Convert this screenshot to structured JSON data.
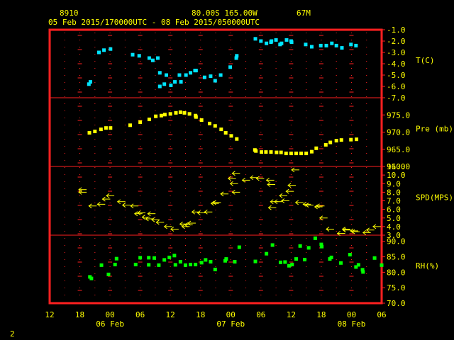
{
  "header": {
    "station": "8910",
    "location": "80.00S  165.00W",
    "elevation": "67M",
    "range": "05 Feb 2015/170000UTC - 08 Feb 2015/050000UTC"
  },
  "footer": {
    "page": "2"
  },
  "colors": {
    "frame": "#ff2020",
    "grid": "#ff2020",
    "text": "#ffff00",
    "temp": "#00e5ff",
    "pres": "#ffff00",
    "wind": "#ffff00",
    "rh": "#00ff00"
  },
  "chart_data": {
    "type": "scatter",
    "x_axis": {
      "unit": "hours since 05 Feb 12UTC",
      "range": [
        0,
        66
      ],
      "tick_labels": [
        "12",
        "18",
        "00",
        "06",
        "12",
        "18",
        "00",
        "06",
        "12",
        "18",
        "00",
        "06"
      ],
      "date_labels": [
        {
          "x": 12,
          "label": "06 Feb"
        },
        {
          "x": 36,
          "label": "07 Feb"
        },
        {
          "x": 60,
          "label": "08 Feb"
        }
      ]
    },
    "panels": [
      {
        "id": "temp",
        "label": "T(C)",
        "ylim": [
          -7,
          -1
        ],
        "ticks": [
          "-1.0",
          "-2.0",
          "-3.0",
          "-4.0",
          "-5.0",
          "-6.0",
          "-7.0"
        ],
        "points": [
          [
            7.8,
            -5.8
          ],
          [
            8.1,
            -5.6
          ],
          [
            9.8,
            -3.0
          ],
          [
            10.8,
            -2.8
          ],
          [
            12.1,
            -2.7
          ],
          [
            16.5,
            -3.2
          ],
          [
            17.8,
            -3.3
          ],
          [
            19.8,
            -3.5
          ],
          [
            20.5,
            -3.7
          ],
          [
            21.5,
            -3.5
          ],
          [
            21.9,
            -4.8
          ],
          [
            21.9,
            -6.0
          ],
          [
            22.8,
            -5.8
          ],
          [
            23.2,
            -5.0
          ],
          [
            24.1,
            -5.9
          ],
          [
            24.9,
            -5.6
          ],
          [
            25.8,
            -5.0
          ],
          [
            26.1,
            -5.6
          ],
          [
            27.1,
            -5.0
          ],
          [
            28.0,
            -4.8
          ],
          [
            28.9,
            -4.6
          ],
          [
            29.1,
            -4.6
          ],
          [
            30.8,
            -5.2
          ],
          [
            32.0,
            -5.1
          ],
          [
            32.9,
            -5.5
          ],
          [
            34.0,
            -5.0
          ],
          [
            35.9,
            -4.3
          ],
          [
            37.1,
            -3.5
          ],
          [
            37.2,
            -3.3
          ],
          [
            40.9,
            -1.8
          ],
          [
            42.0,
            -2.0
          ],
          [
            43.1,
            -2.2
          ],
          [
            44.0,
            -2.1
          ],
          [
            44.1,
            -2.0
          ],
          [
            45.0,
            -1.9
          ],
          [
            45.8,
            -2.3
          ],
          [
            46.1,
            -2.2
          ],
          [
            47.1,
            -1.9
          ],
          [
            48.0,
            -2.0
          ],
          [
            48.1,
            -2.1
          ],
          [
            50.9,
            -2.3
          ],
          [
            52.1,
            -2.5
          ],
          [
            53.9,
            -2.4
          ],
          [
            55.0,
            -2.4
          ],
          [
            56.1,
            -2.2
          ],
          [
            57.0,
            -2.4
          ],
          [
            58.1,
            -2.6
          ],
          [
            59.9,
            -2.3
          ],
          [
            60.9,
            -2.4
          ]
        ]
      },
      {
        "id": "pres",
        "label": "Pre (mb)",
        "ylim": [
          960,
          980
        ],
        "ticks": [
          "975.0",
          "970.0",
          "965.0",
          "960.0"
        ],
        "points": [
          [
            7.9,
            969.8
          ],
          [
            9.0,
            970.2
          ],
          [
            10.2,
            970.8
          ],
          [
            11.2,
            971.2
          ],
          [
            12.1,
            971.2
          ],
          [
            16.0,
            972.0
          ],
          [
            18.0,
            972.9
          ],
          [
            19.8,
            973.7
          ],
          [
            21.1,
            974.6
          ],
          [
            22.2,
            974.8
          ],
          [
            22.9,
            975.1
          ],
          [
            24.0,
            975.3
          ],
          [
            25.1,
            975.6
          ],
          [
            26.0,
            975.8
          ],
          [
            26.8,
            975.6
          ],
          [
            27.8,
            975.3
          ],
          [
            29.0,
            974.8
          ],
          [
            29.1,
            974.4
          ],
          [
            30.2,
            973.5
          ],
          [
            31.8,
            972.5
          ],
          [
            32.9,
            971.8
          ],
          [
            34.1,
            970.8
          ],
          [
            35.0,
            969.8
          ],
          [
            36.1,
            968.9
          ],
          [
            37.2,
            968.0
          ],
          [
            40.8,
            964.8
          ],
          [
            41.0,
            964.5
          ],
          [
            42.1,
            964.2
          ],
          [
            43.0,
            964.2
          ],
          [
            44.0,
            964.2
          ],
          [
            45.1,
            964.1
          ],
          [
            46.0,
            964.1
          ],
          [
            47.0,
            963.8
          ],
          [
            48.0,
            963.8
          ],
          [
            49.0,
            963.8
          ],
          [
            50.0,
            963.8
          ],
          [
            51.0,
            963.8
          ],
          [
            52.1,
            964.3
          ],
          [
            53.0,
            965.3
          ],
          [
            54.9,
            966.3
          ],
          [
            55.8,
            967.0
          ],
          [
            57.0,
            967.5
          ],
          [
            58.0,
            967.7
          ],
          [
            59.9,
            967.8
          ],
          [
            61.0,
            967.9
          ]
        ]
      },
      {
        "id": "wind",
        "label": "SPD(MPS)",
        "ylim": [
          3,
          11
        ],
        "ticks": [
          "11.0",
          "10.0",
          "9.0",
          "8.0",
          "7.0",
          "6.0",
          "5.0",
          "4.0",
          "3.0"
        ],
        "points": [
          [
            6.5,
            8.3
          ],
          [
            6.5,
            8.0
          ],
          [
            8.5,
            6.4
          ],
          [
            10.2,
            6.6
          ],
          [
            11.2,
            7.2
          ],
          [
            12.0,
            7.6
          ],
          [
            14.2,
            6.9
          ],
          [
            15.2,
            6.5
          ],
          [
            16.8,
            6.4
          ],
          [
            17.6,
            5.5
          ],
          [
            18.2,
            5.6
          ],
          [
            19.1,
            5.1
          ],
          [
            19.8,
            4.9
          ],
          [
            20.2,
            5.5
          ],
          [
            21.0,
            4.8
          ],
          [
            21.9,
            4.5
          ],
          [
            23.5,
            4.0
          ],
          [
            24.8,
            3.7
          ],
          [
            26.6,
            4.3
          ],
          [
            27.0,
            4.0
          ],
          [
            27.6,
            4.2
          ],
          [
            28.2,
            4.4
          ],
          [
            29.0,
            5.7
          ],
          [
            30.1,
            5.6
          ],
          [
            31.5,
            5.7
          ],
          [
            32.8,
            6.7
          ],
          [
            33.2,
            6.8
          ],
          [
            34.7,
            7.8
          ],
          [
            36.6,
            9.0
          ],
          [
            37.0,
            8.0
          ],
          [
            36.2,
            9.6
          ],
          [
            37.0,
            10.2
          ],
          [
            39.0,
            9.4
          ],
          [
            40.6,
            9.7
          ],
          [
            41.8,
            9.6
          ],
          [
            43.8,
            9.4
          ],
          [
            44.0,
            8.9
          ],
          [
            44.2,
            6.2
          ],
          [
            44.6,
            6.9
          ],
          [
            45.4,
            6.9
          ],
          [
            46.4,
            7.6
          ],
          [
            46.8,
            7.0
          ],
          [
            47.7,
            8.1
          ],
          [
            48.1,
            8.8
          ],
          [
            48.8,
            10.6
          ],
          [
            49.6,
            6.8
          ],
          [
            51.1,
            6.6
          ],
          [
            51.6,
            6.5
          ],
          [
            53.4,
            6.3
          ],
          [
            53.8,
            6.4
          ],
          [
            54.4,
            5.0
          ],
          [
            55.7,
            3.7
          ],
          [
            57.9,
            3.2
          ],
          [
            58.9,
            3.7
          ],
          [
            59.0,
            3.6
          ],
          [
            60.5,
            3.5
          ],
          [
            60.8,
            3.4
          ],
          [
            63.0,
            3.3
          ],
          [
            63.7,
            3.6
          ],
          [
            65.0,
            4.0
          ]
        ]
      },
      {
        "id": "rh",
        "label": "RH(%)",
        "ylim": [
          70,
          92
        ],
        "ticks": [
          "90.0",
          "85.0",
          "80.0",
          "75.0",
          "70.0"
        ],
        "points": [
          [
            8.0,
            78.5
          ],
          [
            8.3,
            78.0
          ],
          [
            10.3,
            82.3
          ],
          [
            11.7,
            79.3
          ],
          [
            13.0,
            82.5
          ],
          [
            13.3,
            84.4
          ],
          [
            17.1,
            82.5
          ],
          [
            18.0,
            84.7
          ],
          [
            19.7,
            84.7
          ],
          [
            19.7,
            82.4
          ],
          [
            20.8,
            84.6
          ],
          [
            21.7,
            82.3
          ],
          [
            22.8,
            84.0
          ],
          [
            23.8,
            84.8
          ],
          [
            24.8,
            85.4
          ],
          [
            25.0,
            82.4
          ],
          [
            26.0,
            83.4
          ],
          [
            27.0,
            82.3
          ],
          [
            28.0,
            82.5
          ],
          [
            29.0,
            82.5
          ],
          [
            30.2,
            83.1
          ],
          [
            31.0,
            84.0
          ],
          [
            32.0,
            83.4
          ],
          [
            32.9,
            80.9
          ],
          [
            34.9,
            83.7
          ],
          [
            35.1,
            84.3
          ],
          [
            36.8,
            83.4
          ],
          [
            37.7,
            88.1
          ],
          [
            40.9,
            83.5
          ],
          [
            43.1,
            86.0
          ],
          [
            44.3,
            88.8
          ],
          [
            45.9,
            83.2
          ],
          [
            46.8,
            83.3
          ],
          [
            47.6,
            82.1
          ],
          [
            48.2,
            82.5
          ],
          [
            49.0,
            84.3
          ],
          [
            49.8,
            88.5
          ],
          [
            50.7,
            84.1
          ],
          [
            51.5,
            87.9
          ],
          [
            52.8,
            91.0
          ],
          [
            54.0,
            89.0
          ],
          [
            54.1,
            88.3
          ],
          [
            55.7,
            84.3
          ],
          [
            56.0,
            84.8
          ],
          [
            57.9,
            83.0
          ],
          [
            59.7,
            85.7
          ],
          [
            60.9,
            81.7
          ],
          [
            61.4,
            82.4
          ],
          [
            62.2,
            80.8
          ],
          [
            62.3,
            80.1
          ],
          [
            64.6,
            84.6
          ],
          [
            66.0,
            82.3
          ]
        ]
      }
    ]
  }
}
